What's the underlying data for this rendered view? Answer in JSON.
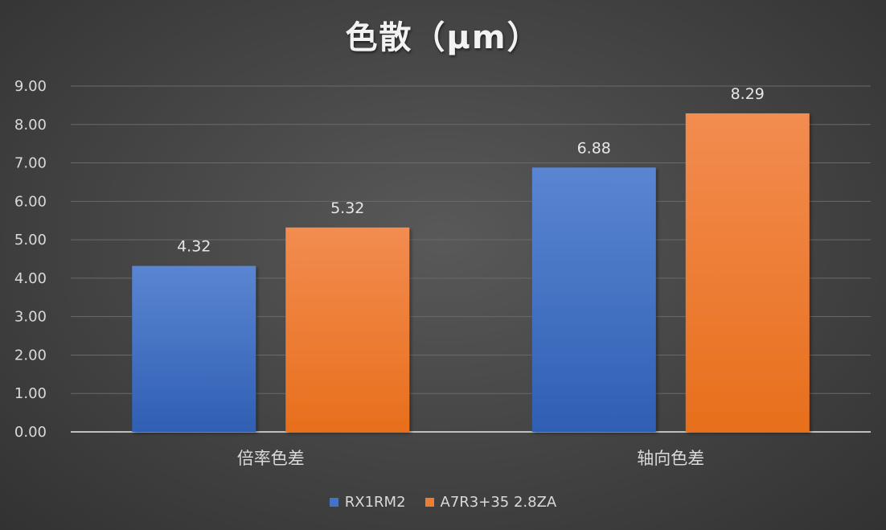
{
  "chart_data": {
    "type": "bar",
    "title": "色散（μm）",
    "categories": [
      "倍率色差",
      "轴向色差"
    ],
    "series": [
      {
        "name": "RX1RM2",
        "values": [
          4.32,
          6.88
        ],
        "color": "#4472c4"
      },
      {
        "name": "A7R3+35 2.8ZA",
        "values": [
          5.32,
          8.29
        ],
        "color": "#ed7d31"
      }
    ],
    "ylim": [
      0,
      9
    ],
    "yticks": [
      "0.00",
      "1.00",
      "2.00",
      "3.00",
      "4.00",
      "5.00",
      "6.00",
      "7.00",
      "8.00",
      "9.00"
    ],
    "data_labels": [
      [
        "4.32",
        "6.88"
      ],
      [
        "5.32",
        "8.29"
      ]
    ],
    "grid": true,
    "legend_position": "bottom"
  }
}
